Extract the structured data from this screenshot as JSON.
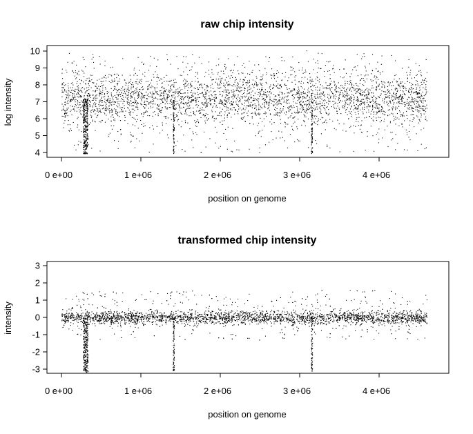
{
  "chart_data": [
    {
      "type": "scatter",
      "title": "raw chip intensity",
      "xlabel": "position on genome",
      "ylabel": "log intensity",
      "xlim": [
        0,
        4600000
      ],
      "ylim": [
        3.9,
        10.1
      ],
      "xticks": [
        0,
        1000000,
        2000000,
        3000000,
        4000000
      ],
      "xtick_labels": [
        "0  e+00",
        "1  e+06",
        "2  e+06",
        "3  e+06",
        "4  e+06"
      ],
      "yticks": [
        4,
        5,
        6,
        7,
        8,
        9,
        10
      ],
      "ytick_labels": [
        "4",
        "5",
        "6",
        "7",
        "8",
        "9",
        "10"
      ],
      "density_profile": {
        "band_center": 7.2,
        "band_low": 6.0,
        "band_high": 8.4,
        "sparse_min": 4.0,
        "sparse_max": 9.9
      },
      "dips": [
        {
          "x": 300000,
          "width": 60000,
          "to": 3.9
        },
        {
          "x": 1410000,
          "width": 14000,
          "to": 3.9
        },
        {
          "x": 3150000,
          "width": 14000,
          "to": 3.9
        }
      ],
      "grid": false
    },
    {
      "type": "scatter",
      "title": "transformed chip intensity",
      "xlabel": "position on genome",
      "ylabel": "intensity",
      "xlim": [
        0,
        4600000
      ],
      "ylim": [
        -3.2,
        3.2
      ],
      "xticks": [
        0,
        1000000,
        2000000,
        3000000,
        4000000
      ],
      "xtick_labels": [
        "0  e+00",
        "1  e+06",
        "2  e+06",
        "3  e+06",
        "4  e+06"
      ],
      "yticks": [
        -3,
        -2,
        -1,
        0,
        1,
        2,
        3
      ],
      "ytick_labels": [
        "-3",
        "-2",
        "-1",
        "0",
        "1",
        "2",
        "3"
      ],
      "density_profile": {
        "band_center": 0.0,
        "band_low": -0.3,
        "band_high": 0.3,
        "sparse_min": -1.3,
        "sparse_max": 1.6
      },
      "dips": [
        {
          "x": 300000,
          "width": 60000,
          "to": -3.2
        },
        {
          "x": 1410000,
          "width": 14000,
          "to": -3.1
        },
        {
          "x": 3150000,
          "width": 14000,
          "to": -3.1
        }
      ],
      "grid": false
    }
  ]
}
